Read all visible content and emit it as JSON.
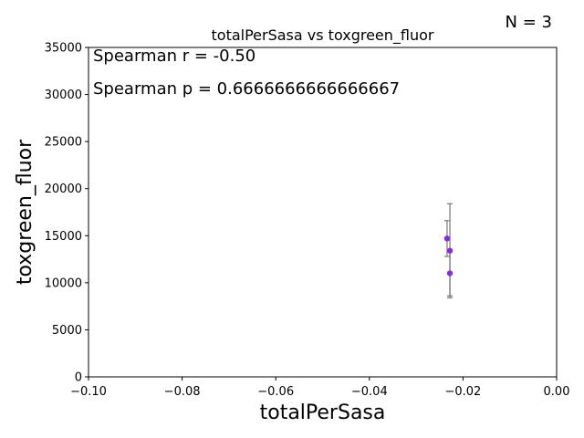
{
  "chart_data": {
    "type": "scatter",
    "title": "totalPerSasa vs toxgreen_fluor",
    "xlabel": "totalPerSasa",
    "ylabel": "toxgreen_fluor",
    "xlim": [
      -0.1,
      0.0
    ],
    "ylim": [
      0,
      35000
    ],
    "x_ticks": [
      -0.1,
      -0.08,
      -0.06,
      -0.04,
      -0.02,
      0.0
    ],
    "x_tick_labels": [
      "−0.10",
      "−0.08",
      "−0.06",
      "−0.04",
      "−0.02",
      "0.00"
    ],
    "y_ticks": [
      0,
      5000,
      10000,
      15000,
      20000,
      25000,
      30000,
      35000
    ],
    "y_tick_labels": [
      "0",
      "5000",
      "10000",
      "15000",
      "20000",
      "25000",
      "30000",
      "35000"
    ],
    "grid": false,
    "point_color": "#8a2be2",
    "errorbar_color": "#808080",
    "points": [
      {
        "x": -0.0234,
        "y": 14700,
        "yerr": 1900
      },
      {
        "x": -0.0228,
        "y": 13400,
        "yerr": 5000
      },
      {
        "x": -0.0228,
        "y": 11000,
        "yerr": 2400
      }
    ],
    "annotations": {
      "spearman_r": "Spearman r = -0.50",
      "spearman_p": "Spearman p = 0.6666666666666667",
      "n_label": "N = 3"
    }
  }
}
